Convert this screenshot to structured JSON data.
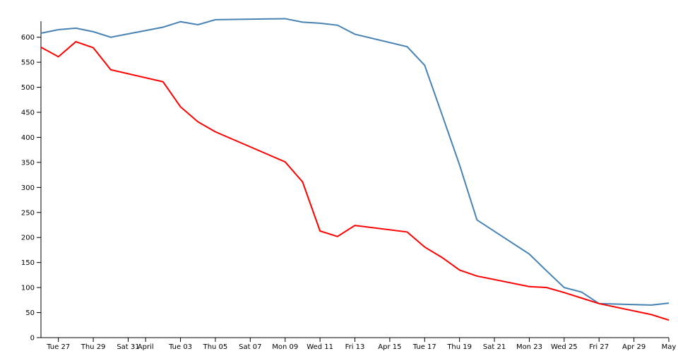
{
  "chart_data": {
    "type": "line",
    "x": [
      "03-26",
      "03-27",
      "03-28",
      "03-29",
      "03-30",
      "04-02",
      "04-03",
      "04-04",
      "04-05",
      "04-09",
      "04-10",
      "04-11",
      "04-12",
      "04-13",
      "04-16",
      "04-17",
      "04-18",
      "04-19",
      "04-20",
      "04-23",
      "04-24",
      "04-25",
      "04-26",
      "04-27",
      "04-30",
      "05-01"
    ],
    "series": [
      {
        "color": "#4682b4",
        "values": [
          608,
          615,
          618,
          611,
          600,
          620,
          631,
          625,
          635,
          637,
          630,
          628,
          624,
          606,
          581,
          544,
          445,
          345,
          235,
          167,
          133,
          100,
          91,
          68,
          65,
          69
        ]
      },
      {
        "color": "#ff0000",
        "values": [
          580,
          561,
          591,
          579,
          535,
          511,
          461,
          431,
          411,
          351,
          311,
          213,
          202,
          224,
          211,
          181,
          160,
          135,
          123,
          102,
          100,
          90,
          79,
          68,
          46,
          35
        ]
      }
    ],
    "xlim": [
      "03-26",
      "05-01"
    ],
    "xticks": [
      {
        "value": "03-27",
        "label": "Tue 27"
      },
      {
        "value": "03-29",
        "label": "Thu 29"
      },
      {
        "value": "03-31",
        "label": "Sat 31"
      },
      {
        "value": "04-01",
        "label": "April"
      },
      {
        "value": "04-03",
        "label": "Tue 03"
      },
      {
        "value": "04-05",
        "label": "Thu 05"
      },
      {
        "value": "04-07",
        "label": "Sat 07"
      },
      {
        "value": "04-09",
        "label": "Mon 09"
      },
      {
        "value": "04-11",
        "label": "Wed 11"
      },
      {
        "value": "04-13",
        "label": "Fri 13"
      },
      {
        "value": "04-15",
        "label": "Apr 15"
      },
      {
        "value": "04-17",
        "label": "Tue 17"
      },
      {
        "value": "04-19",
        "label": "Thu 19"
      },
      {
        "value": "04-21",
        "label": "Sat 21"
      },
      {
        "value": "04-23",
        "label": "Mon 23"
      },
      {
        "value": "04-25",
        "label": "Wed 25"
      },
      {
        "value": "04-27",
        "label": "Fri 27"
      },
      {
        "value": "04-29",
        "label": "Apr 29"
      },
      {
        "value": "05-01",
        "label": "May"
      }
    ],
    "ylim": [
      0,
      632
    ],
    "yticks": [
      0,
      50,
      100,
      150,
      200,
      250,
      300,
      350,
      400,
      450,
      500,
      550,
      600
    ]
  }
}
